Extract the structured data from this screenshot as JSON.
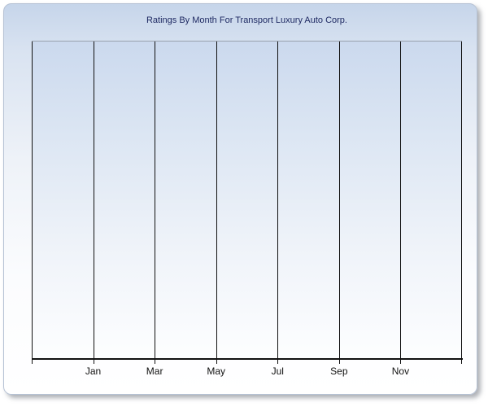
{
  "panel": {
    "border_color": "#b6c2d4",
    "background_top": "#c6d5ea",
    "background_bottom": "#ffffff",
    "shadow_color": "#6b717a"
  },
  "chart": {
    "title": "Ratings By Month For Transport Luxury Auto Corp.",
    "title_color": "#1f2a63",
    "gridline_color": "#111111",
    "axis_color": "#111111",
    "x_tick_labels": [
      "Jan",
      "Mar",
      "May",
      "Jul",
      "Sep",
      "Nov"
    ]
  },
  "chart_data": {
    "type": "line",
    "title": "Ratings By Month For Transport Luxury Auto Corp.",
    "categories": [
      "Jan",
      "Mar",
      "May",
      "Jul",
      "Sep",
      "Nov"
    ],
    "series": [],
    "xlabel": "",
    "ylabel": "",
    "y_tick_labels": [],
    "legend": "none",
    "grid": "8 vertical gridlines spanning plot height; month labels centered on the 6 interior gridlines; no horizontal gridlines; no y-axis scale shown",
    "plot_background": "vertical gradient from light blue (#cbd9ee) at top to white at bottom",
    "notes": "empty chart - no data points or series are rendered"
  }
}
